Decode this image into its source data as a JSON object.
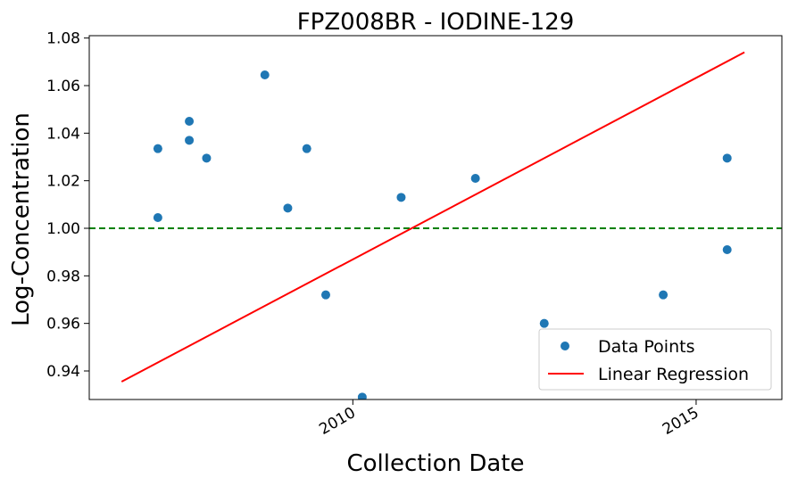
{
  "chart_data": {
    "type": "scatter",
    "title": "FPZ008BR - IODINE-129",
    "xlabel": "Collection Date",
    "ylabel": "Log-Concentration",
    "xlim": [
      "2006-03-01",
      "2016-04-01"
    ],
    "ylim": [
      0.928,
      1.081
    ],
    "x_ticks": [
      "2010-01-01",
      "2015-01-01"
    ],
    "x_tick_labels": [
      "2010",
      "2015"
    ],
    "y_ticks": [
      0.94,
      0.96,
      0.98,
      1.0,
      1.02,
      1.04,
      1.06,
      1.08
    ],
    "y_tick_labels": [
      "0.94",
      "0.96",
      "0.98",
      "1.00",
      "1.02",
      "1.04",
      "1.06",
      "1.08"
    ],
    "grid": false,
    "legend_position": "bottom-right",
    "colors": {
      "points": "#1f77b4",
      "regression": "#ff0000",
      "reference": "#008000"
    },
    "series": [
      {
        "name": "Data Points",
        "kind": "scatter",
        "points": [
          {
            "x": "2007-03-01",
            "y": 1.0335
          },
          {
            "x": "2007-03-01",
            "y": 1.0045
          },
          {
            "x": "2007-08-15",
            "y": 1.045
          },
          {
            "x": "2007-08-15",
            "y": 1.037
          },
          {
            "x": "2007-11-15",
            "y": 1.0295
          },
          {
            "x": "2008-09-20",
            "y": 1.0645
          },
          {
            "x": "2009-01-20",
            "y": 1.0085
          },
          {
            "x": "2009-05-01",
            "y": 1.0335
          },
          {
            "x": "2009-08-10",
            "y": 0.972
          },
          {
            "x": "2010-02-20",
            "y": 0.929
          },
          {
            "x": "2010-09-15",
            "y": 1.013
          },
          {
            "x": "2011-10-15",
            "y": 1.021
          },
          {
            "x": "2012-10-15",
            "y": 0.96
          },
          {
            "x": "2014-07-10",
            "y": 0.972
          },
          {
            "x": "2015-06-15",
            "y": 1.0295
          },
          {
            "x": "2015-06-15",
            "y": 0.991
          }
        ]
      },
      {
        "name": "Linear Regression",
        "kind": "line",
        "points": [
          {
            "x": "2006-08-20",
            "y": 0.9355
          },
          {
            "x": "2015-09-15",
            "y": 1.074
          }
        ]
      }
    ],
    "reference_line": {
      "y": 1.0
    }
  }
}
